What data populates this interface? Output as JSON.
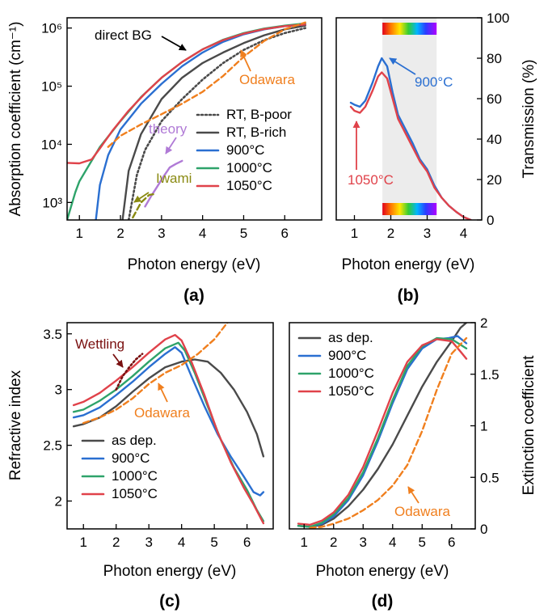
{
  "colors": {
    "as_dep": "#4a4a4a",
    "c900": "#2a6fd1",
    "c1000": "#2ea36a",
    "c1050": "#e0424a",
    "odawara": "#f07f1e",
    "theory": "#b07ad6",
    "iwami": "#8a8a12",
    "wettling": "#7a1010",
    "shade": "#ececec"
  },
  "panels": {
    "a": "(a)",
    "b": "(b)",
    "c": "(c)",
    "d": "(d)"
  },
  "chart_data": [
    {
      "id": "a",
      "type": "line",
      "xlabel": "Photon energy (eV)",
      "ylabel": "Absorption coefficient (cm⁻¹)",
      "xlim": [
        0.7,
        6.9
      ],
      "ylim": [
        500,
        1500000
      ],
      "yscale": "log",
      "xticks": [
        1,
        2,
        3,
        4,
        5,
        6
      ],
      "yticks": [
        {
          "v": 1000,
          "label": "10³"
        },
        {
          "v": 10000,
          "label": "10⁴"
        },
        {
          "v": 100000,
          "label": "10⁵"
        },
        {
          "v": 1000000,
          "label": "10⁶"
        }
      ],
      "legend_position": "right",
      "legend": [
        {
          "label": "RT, B-poor",
          "color": "#4a4a4a",
          "dash": "dot"
        },
        {
          "label": "RT, B-rich",
          "color": "#4a4a4a",
          "dash": "solid"
        },
        {
          "label": "900°C",
          "color": "#2a6fd1",
          "dash": "solid"
        },
        {
          "label": "1000°C",
          "color": "#2ea36a",
          "dash": "solid"
        },
        {
          "label": "1050°C",
          "color": "#e0424a",
          "dash": "solid"
        }
      ],
      "series": [
        {
          "key": "rt_poor",
          "color": "#4a4a4a",
          "dash": "dot",
          "x": [
            2.2,
            2.4,
            2.6,
            3,
            3.5,
            4,
            4.5,
            5,
            5.5,
            6,
            6.5
          ],
          "y": [
            500,
            3000,
            8000,
            25000,
            60000,
            130000,
            250000,
            420000,
            620000,
            820000,
            1000000
          ]
        },
        {
          "key": "rt_rich",
          "color": "#4a4a4a",
          "dash": "solid",
          "x": [
            2.05,
            2.2,
            2.5,
            3,
            3.5,
            4,
            4.5,
            5,
            5.5,
            6,
            6.5
          ],
          "y": [
            500,
            3500,
            15000,
            60000,
            140000,
            250000,
            380000,
            550000,
            750000,
            950000,
            1100000
          ]
        },
        {
          "key": "c900",
          "color": "#2a6fd1",
          "dash": "solid",
          "x": [
            1.4,
            1.5,
            1.7,
            2,
            2.5,
            3,
            3.5,
            4,
            4.5,
            5,
            5.5,
            6,
            6.5
          ],
          "y": [
            500,
            2000,
            6500,
            18000,
            50000,
            110000,
            220000,
            380000,
            580000,
            780000,
            950000,
            1080000,
            1150000
          ]
        },
        {
          "key": "c1000",
          "color": "#2ea36a",
          "dash": "solid",
          "x": [
            0.7,
            0.9,
            1.0,
            1.2,
            1.5,
            2,
            2.5,
            3,
            3.5,
            4,
            4.5,
            5,
            5.5,
            6,
            6.5
          ],
          "y": [
            500,
            1500,
            2300,
            4000,
            9000,
            25000,
            65000,
            140000,
            260000,
            430000,
            630000,
            820000,
            980000,
            1100000,
            1200000
          ]
        },
        {
          "key": "c1050",
          "color": "#e0424a",
          "dash": "solid",
          "x": [
            0.7,
            1.0,
            1.3,
            1.5,
            1.8,
            2.2,
            2.6,
            3,
            3.5,
            4,
            4.5,
            5,
            5.5,
            6,
            6.5
          ],
          "y": [
            4800,
            4700,
            5500,
            8500,
            17000,
            38000,
            75000,
            140000,
            260000,
            430000,
            620000,
            800000,
            960000,
            1080000,
            1150000
          ]
        },
        {
          "key": "odawara",
          "color": "#f07f1e",
          "dash": "dash",
          "x": [
            1.7,
            2,
            2.5,
            3,
            3.5,
            4,
            4.5,
            5,
            5.5,
            6,
            6.5
          ],
          "y": [
            9000,
            14000,
            22000,
            33000,
            50000,
            80000,
            150000,
            320000,
            600000,
            950000,
            1250000
          ]
        },
        {
          "key": "theory",
          "color": "#b07ad6",
          "dash": "solid",
          "x": [
            2.6,
            2.75,
            2.9,
            3.05,
            3.2,
            3.35,
            3.5
          ],
          "y": [
            850,
            1300,
            1900,
            2800,
            4000,
            4600,
            5200
          ]
        },
        {
          "key": "iwami",
          "color": "#8a8a12",
          "dash": "dash",
          "x": [
            2.3,
            2.5,
            2.7,
            2.85
          ],
          "y": [
            550,
            1000,
            1350,
            1400
          ]
        }
      ],
      "annotations": [
        {
          "text": "direct BG",
          "color": "#000000"
        },
        {
          "text": "Odawara",
          "color": "#f07f1e"
        },
        {
          "text": "theory",
          "color": "#b07ad6"
        },
        {
          "text": "Iwami",
          "color": "#8a8a12"
        }
      ]
    },
    {
      "id": "b",
      "type": "line",
      "xlabel": "Photon energy (eV)",
      "ylabel": "Transmission (%)",
      "xlim": [
        0.5,
        4.5
      ],
      "ylim": [
        0,
        100
      ],
      "xticks": [
        1,
        2,
        3,
        4
      ],
      "yticks": [
        0,
        20,
        40,
        60,
        80,
        100
      ],
      "visible_band_eV": [
        1.77,
        3.26
      ],
      "series": [
        {
          "key": "c900",
          "color": "#2a6fd1",
          "x": [
            0.9,
            1.0,
            1.15,
            1.3,
            1.5,
            1.65,
            1.75,
            1.9,
            2.05,
            2.2,
            2.4,
            2.6,
            2.8,
            3.0,
            3.2,
            3.4,
            3.6,
            3.8,
            4.0,
            4.2
          ],
          "y": [
            58,
            57,
            56,
            59,
            68,
            76,
            80,
            76,
            63,
            52,
            45,
            38,
            30,
            25,
            17,
            11,
            7,
            4,
            1.5,
            0
          ]
        },
        {
          "key": "c1050",
          "color": "#e0424a",
          "x": [
            0.9,
            1.0,
            1.15,
            1.3,
            1.5,
            1.65,
            1.75,
            1.9,
            2.05,
            2.2,
            2.4,
            2.6,
            2.8,
            3.0,
            3.2,
            3.4,
            3.6,
            3.8,
            4.0,
            4.2
          ],
          "y": [
            56,
            54,
            53,
            56,
            64,
            71,
            73,
            70,
            60,
            50,
            43,
            36,
            29,
            24,
            16,
            11,
            7,
            4,
            1.5,
            0
          ]
        }
      ],
      "annotations": [
        {
          "text": "900°C",
          "color": "#2a6fd1"
        },
        {
          "text": "1050°C",
          "color": "#e0424a"
        }
      ]
    },
    {
      "id": "c",
      "type": "line",
      "xlabel": "Photon energy (eV)",
      "ylabel": "Refractive index",
      "xlim": [
        0.5,
        6.8
      ],
      "ylim": [
        1.75,
        3.6
      ],
      "xticks": [
        1,
        2,
        3,
        4,
        5,
        6
      ],
      "yticks": [
        2.0,
        2.5,
        3.0,
        3.5
      ],
      "legend_position": "lower-left",
      "legend": [
        {
          "label": "as dep.",
          "color": "#4a4a4a"
        },
        {
          "label": "900°C",
          "color": "#2a6fd1"
        },
        {
          "label": "1000°C",
          "color": "#2ea36a"
        },
        {
          "label": "1050°C",
          "color": "#e0424a"
        }
      ],
      "series": [
        {
          "key": "as_dep",
          "color": "#4a4a4a",
          "dash": "solid",
          "x": [
            0.7,
            1,
            1.5,
            2,
            2.5,
            3,
            3.5,
            4,
            4.4,
            4.8,
            5.2,
            5.6,
            6,
            6.3,
            6.5
          ],
          "y": [
            2.67,
            2.69,
            2.75,
            2.85,
            2.98,
            3.1,
            3.2,
            3.25,
            3.27,
            3.25,
            3.15,
            3.0,
            2.8,
            2.6,
            2.4
          ]
        },
        {
          "key": "c900",
          "color": "#2a6fd1",
          "dash": "solid",
          "x": [
            0.7,
            1,
            1.5,
            2,
            2.5,
            3,
            3.5,
            3.8,
            4.0,
            4.3,
            4.7,
            5.1,
            5.5,
            5.9,
            6.2,
            6.4,
            6.5
          ],
          "y": [
            2.75,
            2.77,
            2.84,
            2.95,
            3.07,
            3.2,
            3.32,
            3.38,
            3.33,
            3.12,
            2.85,
            2.6,
            2.4,
            2.22,
            2.08,
            2.05,
            2.08
          ]
        },
        {
          "key": "c1000",
          "color": "#2ea36a",
          "dash": "solid",
          "x": [
            0.7,
            1,
            1.5,
            2,
            2.5,
            3,
            3.5,
            3.9,
            4.1,
            4.4,
            4.8,
            5.2,
            5.6,
            6.0,
            6.3,
            6.5
          ],
          "y": [
            2.8,
            2.82,
            2.9,
            3.0,
            3.12,
            3.25,
            3.37,
            3.42,
            3.35,
            3.15,
            2.85,
            2.55,
            2.3,
            2.1,
            1.92,
            1.82
          ]
        },
        {
          "key": "c1050",
          "color": "#e0424a",
          "dash": "solid",
          "x": [
            0.7,
            1,
            1.5,
            2,
            2.5,
            3,
            3.5,
            3.8,
            4.0,
            4.3,
            4.7,
            5.1,
            5.5,
            5.9,
            6.2,
            6.5
          ],
          "y": [
            2.86,
            2.89,
            2.97,
            3.08,
            3.2,
            3.33,
            3.45,
            3.49,
            3.44,
            3.25,
            2.95,
            2.62,
            2.35,
            2.12,
            1.97,
            1.8
          ]
        },
        {
          "key": "odawara",
          "color": "#f07f1e",
          "dash": "dash",
          "x": [
            1,
            1.5,
            2,
            2.5,
            3,
            3.5,
            4,
            4.5,
            5,
            5.4
          ],
          "y": [
            2.7,
            2.75,
            2.82,
            2.92,
            3.05,
            3.15,
            3.22,
            3.32,
            3.45,
            3.6
          ]
        },
        {
          "key": "wettling",
          "color": "#7a1010",
          "dash": "dot",
          "x": [
            2.0,
            2.2,
            2.4,
            2.6,
            2.8
          ],
          "y": [
            3.0,
            3.12,
            3.2,
            3.27,
            3.32
          ]
        }
      ],
      "annotations": [
        {
          "text": "Wettling",
          "color": "#7a1010"
        },
        {
          "text": "Odawara",
          "color": "#f07f1e"
        }
      ]
    },
    {
      "id": "d",
      "type": "line",
      "xlabel": "Photon energy (eV)",
      "ylabel": "Extinction coefficient",
      "xlim": [
        0.5,
        6.8
      ],
      "ylim": [
        0,
        2.0
      ],
      "xticks": [
        1,
        2,
        3,
        4,
        5,
        6
      ],
      "yticks": [
        0.0,
        0.5,
        1.0,
        1.5,
        2.0
      ],
      "legend_position": "top-left",
      "legend": [
        {
          "label": "as dep.",
          "color": "#4a4a4a"
        },
        {
          "label": "900°C",
          "color": "#2a6fd1"
        },
        {
          "label": "1000°C",
          "color": "#2ea36a"
        },
        {
          "label": "1050°C",
          "color": "#e0424a"
        }
      ],
      "series": [
        {
          "key": "as_dep",
          "color": "#4a4a4a",
          "dash": "solid",
          "x": [
            0.8,
            1.2,
            1.6,
            2,
            2.5,
            3,
            3.5,
            4,
            4.5,
            5,
            5.5,
            6,
            6.3,
            6.5
          ],
          "y": [
            0.03,
            0.02,
            0.04,
            0.1,
            0.22,
            0.38,
            0.58,
            0.82,
            1.1,
            1.38,
            1.62,
            1.82,
            1.95,
            2.0
          ]
        },
        {
          "key": "c900",
          "color": "#2a6fd1",
          "dash": "solid",
          "x": [
            0.8,
            1.2,
            1.6,
            2,
            2.5,
            3,
            3.5,
            4,
            4.5,
            5,
            5.5,
            5.9,
            6.2,
            6.5
          ],
          "y": [
            0.03,
            0.02,
            0.05,
            0.12,
            0.28,
            0.52,
            0.85,
            1.22,
            1.55,
            1.75,
            1.84,
            1.85,
            1.87,
            1.8
          ]
        },
        {
          "key": "c1000",
          "color": "#2ea36a",
          "dash": "solid",
          "x": [
            0.8,
            1.2,
            1.6,
            2,
            2.5,
            3,
            3.5,
            4,
            4.5,
            5,
            5.5,
            6,
            6.5
          ],
          "y": [
            0.03,
            0.02,
            0.06,
            0.14,
            0.3,
            0.55,
            0.88,
            1.25,
            1.58,
            1.77,
            1.85,
            1.84,
            1.75
          ]
        },
        {
          "key": "c1050",
          "color": "#e0424a",
          "dash": "solid",
          "x": [
            0.8,
            1.2,
            1.6,
            2,
            2.5,
            3,
            3.5,
            4,
            4.5,
            5,
            5.5,
            6,
            6.3,
            6.5
          ],
          "y": [
            0.05,
            0.04,
            0.08,
            0.16,
            0.33,
            0.6,
            0.95,
            1.32,
            1.62,
            1.78,
            1.84,
            1.82,
            1.72,
            1.65
          ]
        },
        {
          "key": "odawara",
          "color": "#f07f1e",
          "dash": "dash",
          "x": [
            1.2,
            1.6,
            2,
            2.5,
            3,
            3.5,
            4,
            4.5,
            5,
            5.5,
            6,
            6.5
          ],
          "y": [
            0.01,
            0.02,
            0.05,
            0.1,
            0.18,
            0.28,
            0.42,
            0.62,
            0.95,
            1.35,
            1.7,
            1.85
          ]
        }
      ],
      "annotations": [
        {
          "text": "Odawara",
          "color": "#f07f1e"
        }
      ]
    }
  ]
}
